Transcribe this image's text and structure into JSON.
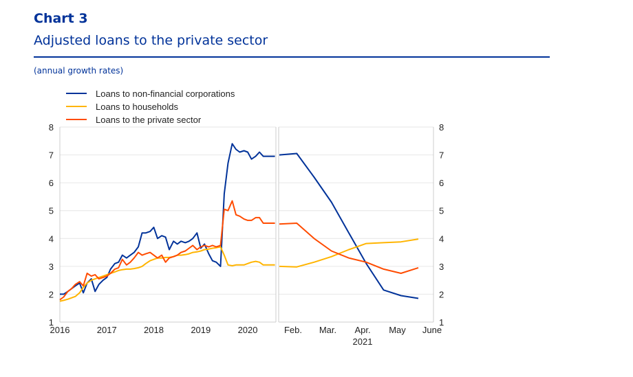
{
  "header": {
    "chart_label": "Chart 3",
    "title": "Adjusted loans to the private sector",
    "subtitle": "(annual growth rates)"
  },
  "colors": {
    "title": "#003299",
    "nfc": "#003299",
    "households": "#ffb400",
    "private_sector": "#ff4b00",
    "grid": "#e6e6e6",
    "axis": "#cccccc"
  },
  "chart_data": {
    "type": "line",
    "title": "Adjusted loans to the private sector",
    "subtitle": "(annual growth rates)",
    "ylim": [
      1,
      8
    ],
    "y_ticks": [
      "1",
      "2",
      "3",
      "4",
      "5",
      "6",
      "7",
      "8"
    ],
    "legend": [
      "Loans to non-financial corporations",
      "Loans to households",
      "Loans to the private sector"
    ],
    "legend_position": "top-left",
    "left_panel": {
      "xlim": [
        2016,
        2020.6
      ],
      "x_tick_labels": [
        "2016",
        "2017",
        "2018",
        "2019",
        "2020"
      ],
      "x": [
        2016.0,
        2016.08,
        2016.17,
        2016.25,
        2016.33,
        2016.42,
        2016.5,
        2016.58,
        2016.67,
        2016.75,
        2016.83,
        2016.92,
        2017.0,
        2017.08,
        2017.17,
        2017.25,
        2017.33,
        2017.42,
        2017.5,
        2017.58,
        2017.67,
        2017.75,
        2017.83,
        2017.92,
        2018.0,
        2018.08,
        2018.17,
        2018.25,
        2018.33,
        2018.42,
        2018.5,
        2018.58,
        2018.67,
        2018.75,
        2018.83,
        2018.92,
        2019.0,
        2019.08,
        2019.17,
        2019.25,
        2019.33,
        2019.42,
        2019.5,
        2019.58,
        2019.67,
        2019.75,
        2019.83,
        2019.92,
        2020.0,
        2020.08,
        2020.17,
        2020.25,
        2020.33,
        2020.42,
        2020.5,
        2020.58
      ],
      "series": [
        {
          "name": "Loans to non-financial corporations",
          "values": [
            2.0,
            2.0,
            2.1,
            2.2,
            2.3,
            2.4,
            2.05,
            2.4,
            2.55,
            2.1,
            2.35,
            2.5,
            2.6,
            2.9,
            3.1,
            3.15,
            3.4,
            3.3,
            3.4,
            3.5,
            3.7,
            4.2,
            4.2,
            4.25,
            4.4,
            4.0,
            4.1,
            4.05,
            3.6,
            3.9,
            3.8,
            3.9,
            3.85,
            3.9,
            4.0,
            4.2,
            3.65,
            3.8,
            3.45,
            3.2,
            3.15,
            3.0,
            5.6,
            6.7,
            7.4,
            7.2,
            7.1,
            7.15,
            7.1,
            6.85,
            6.95,
            7.1,
            6.95,
            6.95,
            6.95,
            6.95
          ]
        },
        {
          "name": "Loans to households",
          "values": [
            1.75,
            1.78,
            1.82,
            1.87,
            1.92,
            2.05,
            2.25,
            2.4,
            2.5,
            2.55,
            2.6,
            2.65,
            2.7,
            2.75,
            2.8,
            2.85,
            2.88,
            2.9,
            2.9,
            2.92,
            2.95,
            3.0,
            3.1,
            3.2,
            3.25,
            3.3,
            3.3,
            3.32,
            3.32,
            3.35,
            3.4,
            3.4,
            3.42,
            3.45,
            3.5,
            3.52,
            3.55,
            3.6,
            3.62,
            3.65,
            3.67,
            3.7,
            3.4,
            3.05,
            3.02,
            3.05,
            3.05,
            3.05,
            3.1,
            3.15,
            3.18,
            3.15,
            3.05,
            3.05,
            3.05,
            3.05
          ]
        },
        {
          "name": "Loans to the private sector",
          "values": [
            1.8,
            1.9,
            2.1,
            2.2,
            2.35,
            2.45,
            2.3,
            2.75,
            2.65,
            2.7,
            2.55,
            2.6,
            2.65,
            2.75,
            2.9,
            2.95,
            3.25,
            3.05,
            3.15,
            3.3,
            3.5,
            3.4,
            3.45,
            3.5,
            3.4,
            3.3,
            3.4,
            3.15,
            3.3,
            3.35,
            3.4,
            3.5,
            3.55,
            3.65,
            3.75,
            3.6,
            3.7,
            3.75,
            3.7,
            3.75,
            3.7,
            3.75,
            5.05,
            5.0,
            5.35,
            4.85,
            4.8,
            4.7,
            4.65,
            4.65,
            4.75,
            4.75,
            4.55,
            4.55,
            4.55,
            4.55
          ]
        }
      ]
    },
    "right_panel": {
      "categories": [
        "Feb.",
        "Mar.",
        "Apr.",
        "May",
        "June"
      ],
      "year_label": "2021",
      "x": [
        1.0,
        1.5,
        2.0,
        2.5,
        3.0,
        3.5,
        4.0,
        4.5,
        5.0
      ],
      "series": [
        {
          "name": "Loans to non-financial corporations",
          "values": [
            7.0,
            7.05,
            6.2,
            5.3,
            4.2,
            3.1,
            2.15,
            1.95,
            1.85
          ]
        },
        {
          "name": "Loans to households",
          "values": [
            3.0,
            2.98,
            3.15,
            3.35,
            3.6,
            3.82,
            3.85,
            3.88,
            3.98
          ]
        },
        {
          "name": "Loans to the private sector",
          "values": [
            4.52,
            4.55,
            4.0,
            3.55,
            3.3,
            3.15,
            2.9,
            2.75,
            2.95
          ]
        }
      ]
    }
  }
}
